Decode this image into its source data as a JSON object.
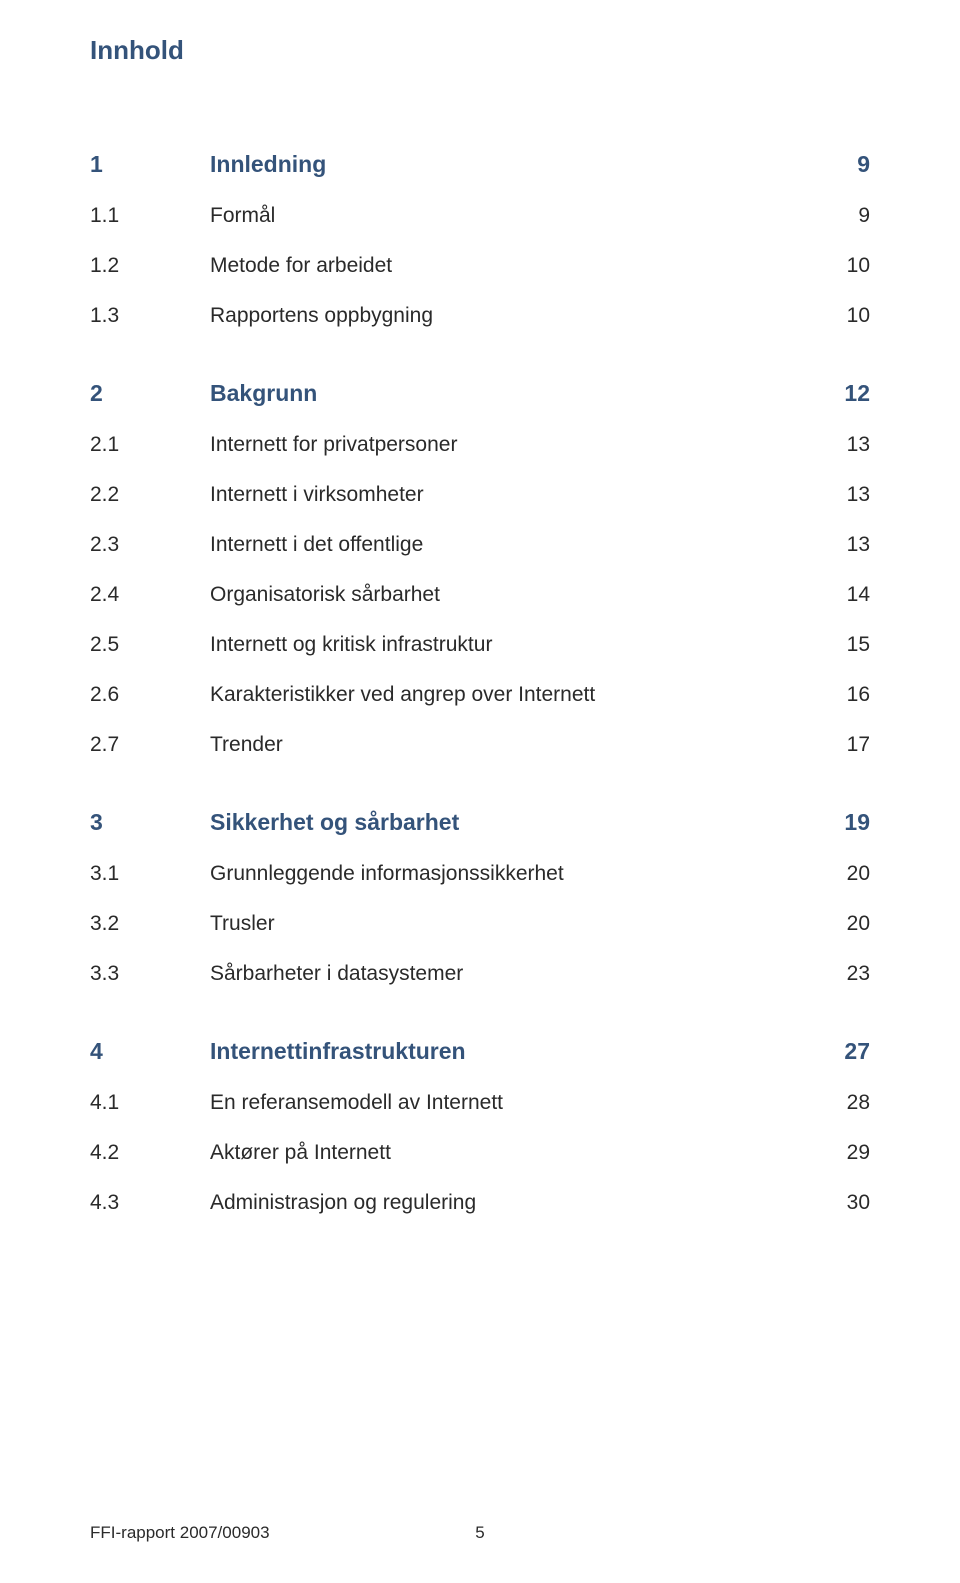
{
  "title": "Innhold",
  "colors": {
    "heading": "#34537a",
    "body": "#2a2a2a",
    "background": "#ffffff"
  },
  "typography": {
    "heading_fontsize": 26,
    "section_fontsize": 23,
    "body_fontsize": 21,
    "footer_fontsize": 17
  },
  "sections": [
    {
      "num": "1",
      "label": "Innledning",
      "page": "9",
      "subs": [
        {
          "num": "1.1",
          "label": "Formål",
          "page": "9"
        },
        {
          "num": "1.2",
          "label": "Metode for arbeidet",
          "page": "10"
        },
        {
          "num": "1.3",
          "label": "Rapportens oppbygning",
          "page": "10"
        }
      ]
    },
    {
      "num": "2",
      "label": "Bakgrunn",
      "page": "12",
      "subs": [
        {
          "num": "2.1",
          "label": "Internett for privatpersoner",
          "page": "13"
        },
        {
          "num": "2.2",
          "label": "Internett i virksomheter",
          "page": "13"
        },
        {
          "num": "2.3",
          "label": "Internett i det offentlige",
          "page": "13"
        },
        {
          "num": "2.4",
          "label": "Organisatorisk sårbarhet",
          "page": "14"
        },
        {
          "num": "2.5",
          "label": "Internett og kritisk infrastruktur",
          "page": "15"
        },
        {
          "num": "2.6",
          "label": "Karakteristikker ved angrep over Internett",
          "page": "16"
        },
        {
          "num": "2.7",
          "label": "Trender",
          "page": "17"
        }
      ]
    },
    {
      "num": "3",
      "label": "Sikkerhet og sårbarhet",
      "page": "19",
      "subs": [
        {
          "num": "3.1",
          "label": "Grunnleggende informasjonssikkerhet",
          "page": "20"
        },
        {
          "num": "3.2",
          "label": "Trusler",
          "page": "20"
        },
        {
          "num": "3.3",
          "label": "Sårbarheter i datasystemer",
          "page": "23"
        }
      ]
    },
    {
      "num": "4",
      "label": "Internettinfrastrukturen",
      "page": "27",
      "subs": [
        {
          "num": "4.1",
          "label": "En referansemodell av Internett",
          "page": "28"
        },
        {
          "num": "4.2",
          "label": "Aktører på Internett",
          "page": "29"
        },
        {
          "num": "4.3",
          "label": "Administrasjon og regulering",
          "page": "30"
        }
      ]
    }
  ],
  "footer": {
    "report_id": "FFI-rapport 2007/00903",
    "page_number": "5"
  }
}
